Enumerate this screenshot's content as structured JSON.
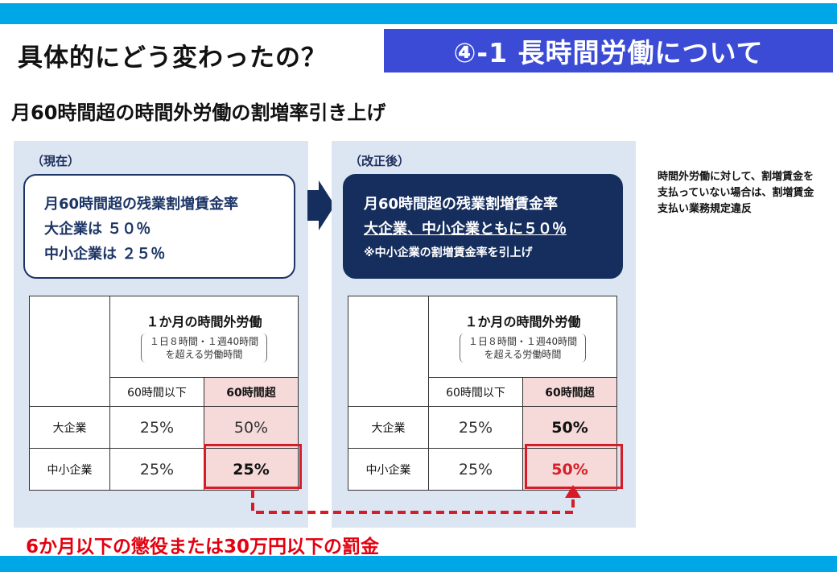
{
  "heading": "具体的にどう変わったの？",
  "section_title": "④-1 長時間労働について",
  "subheading": "月60時間超の時間外労働の割増率引き上げ",
  "before": {
    "label": "（現在）",
    "box_line1": "月60時間超の残業割増賃金率",
    "box_line2": "大企業は ５０％",
    "box_line3": "中小企業は ２５％",
    "table": {
      "header_title": "１か月の時間外労働",
      "header_sub1": "１日８時間・１週40時間",
      "header_sub2": "を超える労働時間",
      "col1": "60時間以下",
      "col2": "60時間超",
      "rows": [
        {
          "label": "大企業",
          "v1": "25%",
          "v2": "50%"
        },
        {
          "label": "中小企業",
          "v1": "25%",
          "v2": "25%"
        }
      ]
    }
  },
  "after": {
    "label": "（改正後）",
    "box_line1": "月60時間超の残業割増賃金率",
    "box_line2": "大企業、中小企業ともに５０％",
    "box_note": "※中小企業の割増賃金率を引上げ",
    "table": {
      "header_title": "１か月の時間外労働",
      "header_sub1": "１日８時間・１週40時間",
      "header_sub2": "を超える労働時間",
      "col1": "60時間以下",
      "col2": "60時間超",
      "rows": [
        {
          "label": "大企業",
          "v1": "25%",
          "v2": "50%"
        },
        {
          "label": "中小企業",
          "v1": "25%",
          "v2": "50%"
        }
      ]
    }
  },
  "side_note": "時間外労働に対して、割増賃金を支払っていない場合は、割増賃金支払い業務規定違反",
  "penalty": "6か月以下の懲役または30万円以下の罰金",
  "colors": {
    "bar": "#00a7e6",
    "section": "#3b4bd6",
    "navy": "#152e5e",
    "panel": "#dce6f3",
    "red": "#d51c28",
    "pink": "#f6d9d9"
  }
}
